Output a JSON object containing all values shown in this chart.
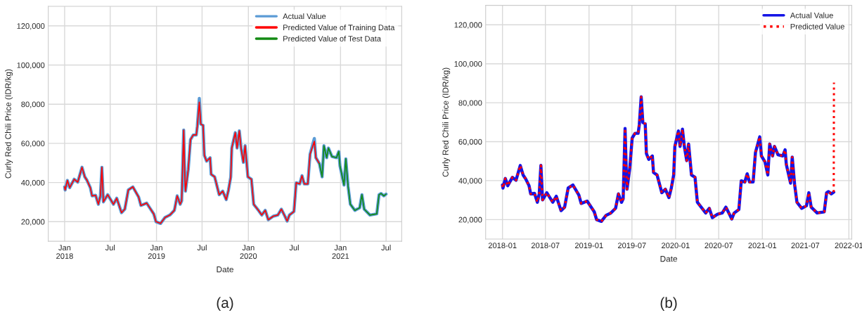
{
  "chart_data": [
    {
      "type": "line",
      "xlabel": "Date",
      "ylabel": "Curly Red Chili Price (IDR/kg)",
      "xlim": [
        "2017-10-28",
        "2021-09-01"
      ],
      "xticks": [
        {
          "value": "2018-01-01",
          "label": "Jan\n2018"
        },
        {
          "value": "2018-07-01",
          "label": "Jul"
        },
        {
          "value": "2019-01-01",
          "label": "Jan\n2019"
        },
        {
          "value": "2019-07-01",
          "label": "Jul"
        },
        {
          "value": "2020-01-01",
          "label": "Jan\n2020"
        },
        {
          "value": "2020-07-01",
          "label": "Jul"
        },
        {
          "value": "2021-01-01",
          "label": "Jan\n2021"
        },
        {
          "value": "2021-07-01",
          "label": "Jul"
        }
      ],
      "ylim": [
        10000,
        130000
      ],
      "yticks": [
        {
          "value": 20000,
          "label": "20,000"
        },
        {
          "value": 40000,
          "label": "40,000"
        },
        {
          "value": 60000,
          "label": "60,000"
        },
        {
          "value": 80000,
          "label": "80,000"
        },
        {
          "value": 100000,
          "label": "100,000"
        },
        {
          "value": 120000,
          "label": "120,000"
        }
      ],
      "grid": true,
      "legend": "top right",
      "marker": "none",
      "annotations": [
        "(a)"
      ],
      "series": [
        {
          "name": "Actual Value",
          "color": "#5b9bd5",
          "line_style": "solid",
          "x": [
            "2018-01-01",
            "2018-01-03",
            "2018-01-12",
            "2018-01-21",
            "2018-02-08",
            "2018-02-22",
            "2018-03-11",
            "2018-03-22",
            "2018-03-31",
            "2018-04-13",
            "2018-04-20",
            "2018-05-04",
            "2018-05-15",
            "2018-05-23",
            "2018-05-29",
            "2018-06-04",
            "2018-06-21",
            "2018-07-14",
            "2018-07-27",
            "2018-08-15",
            "2018-08-28",
            "2018-09-11",
            "2018-09-29",
            "2018-10-22",
            "2018-10-31",
            "2018-11-23",
            "2018-12-02",
            "2018-12-21",
            "2018-12-30",
            "2019-01-17",
            "2019-02-04",
            "2019-02-23",
            "2019-03-13",
            "2019-03-24",
            "2019-04-05",
            "2019-04-11",
            "2019-04-19",
            "2019-04-23",
            "2019-04-26",
            "2019-05-07",
            "2019-05-16",
            "2019-05-27",
            "2019-06-08",
            "2019-06-12",
            "2019-06-20",
            "2019-06-26",
            "2019-07-05",
            "2019-07-10",
            "2019-07-19",
            "2019-08-02",
            "2019-08-06",
            "2019-08-20",
            "2019-09-07",
            "2019-09-21",
            "2019-10-05",
            "2019-10-14",
            "2019-10-23",
            "2019-10-27",
            "2019-11-10",
            "2019-11-17",
            "2019-11-26",
            "2019-12-03",
            "2019-12-12",
            "2019-12-19",
            "2019-12-30",
            "2020-01-13",
            "2020-01-22",
            "2020-02-10",
            "2020-02-23",
            "2020-03-08",
            "2020-03-20",
            "2020-04-09",
            "2020-04-27",
            "2020-05-11",
            "2020-05-25",
            "2020-06-03",
            "2020-06-12",
            "2020-06-30",
            "2020-07-09",
            "2020-07-23",
            "2020-08-01",
            "2020-08-10",
            "2020-08-24",
            "2020-09-02",
            "2020-09-19",
            "2020-09-25",
            "2020-10-09",
            "2020-10-20",
            "2020-10-27",
            "2020-11-07",
            "2020-11-14",
            "2020-11-28",
            "2020-12-16",
            "2020-12-25",
            "2020-12-30",
            "2021-01-15",
            "2021-01-22",
            "2021-01-31",
            "2021-02-09",
            "2021-02-27",
            "2021-03-18",
            "2021-03-27",
            "2021-04-05",
            "2021-04-28",
            "2021-05-25",
            "2021-06-03",
            "2021-06-11",
            "2021-06-22",
            "2021-07-01"
          ],
          "values": [
            37800,
            36200,
            41100,
            37400,
            41700,
            40200,
            47800,
            42900,
            41100,
            37400,
            33200,
            33500,
            28900,
            33200,
            47800,
            30100,
            33800,
            28900,
            32000,
            24600,
            26400,
            36200,
            37800,
            32600,
            28300,
            29500,
            27700,
            24000,
            20000,
            19100,
            22200,
            23400,
            25800,
            33200,
            28900,
            30700,
            66800,
            45400,
            35600,
            46600,
            61900,
            64300,
            64300,
            68600,
            83000,
            69800,
            69200,
            53900,
            50900,
            52700,
            44200,
            42900,
            33800,
            35600,
            31300,
            36200,
            42900,
            57600,
            65500,
            57600,
            66400,
            57600,
            50300,
            58800,
            42900,
            41700,
            28900,
            25800,
            23400,
            25800,
            21000,
            22800,
            23400,
            26400,
            22800,
            20300,
            23400,
            25200,
            39900,
            39300,
            43500,
            39300,
            39300,
            54500,
            62500,
            52700,
            49700,
            42900,
            58800,
            52700,
            57600,
            53300,
            52700,
            55800,
            48400,
            38700,
            52100,
            38100,
            28900,
            25800,
            27100,
            33800,
            26400,
            23400,
            24000,
            33800,
            34400,
            33200,
            34100
          ]
        },
        {
          "name": "Predicted Value of Training Data",
          "color": "#ff0000",
          "line_style": "solid",
          "x": [
            "2018-01-01",
            "2018-01-03",
            "2018-01-12",
            "2018-01-21",
            "2018-02-08",
            "2018-02-22",
            "2018-03-11",
            "2018-03-22",
            "2018-03-31",
            "2018-04-13",
            "2018-04-20",
            "2018-05-04",
            "2018-05-15",
            "2018-05-23",
            "2018-05-29",
            "2018-06-04",
            "2018-06-21",
            "2018-07-14",
            "2018-07-27",
            "2018-08-15",
            "2018-08-28",
            "2018-09-11",
            "2018-09-29",
            "2018-10-22",
            "2018-10-31",
            "2018-11-23",
            "2018-12-02",
            "2018-12-21",
            "2018-12-30",
            "2019-01-17",
            "2019-02-04",
            "2019-02-23",
            "2019-03-13",
            "2019-03-24",
            "2019-04-05",
            "2019-04-11",
            "2019-04-19",
            "2019-04-23",
            "2019-04-26",
            "2019-05-07",
            "2019-05-16",
            "2019-05-27",
            "2019-06-08",
            "2019-06-12",
            "2019-06-20",
            "2019-06-26",
            "2019-07-05",
            "2019-07-10",
            "2019-07-19",
            "2019-08-02",
            "2019-08-06",
            "2019-08-20",
            "2019-09-07",
            "2019-09-21",
            "2019-10-05",
            "2019-10-14",
            "2019-10-23",
            "2019-10-27",
            "2019-11-10",
            "2019-11-17",
            "2019-11-26",
            "2019-12-03",
            "2019-12-12",
            "2019-12-19",
            "2019-12-30",
            "2020-01-13",
            "2020-01-22",
            "2020-02-10",
            "2020-02-23",
            "2020-03-08",
            "2020-03-20",
            "2020-04-09",
            "2020-04-27",
            "2020-05-11",
            "2020-05-25",
            "2020-06-03",
            "2020-06-12",
            "2020-06-30",
            "2020-07-09",
            "2020-07-23",
            "2020-08-01",
            "2020-08-10",
            "2020-08-24",
            "2020-09-02",
            "2020-09-19",
            "2020-09-25",
            "2020-10-09"
          ],
          "values": [
            37800,
            36200,
            41100,
            37400,
            41700,
            40200,
            47800,
            42900,
            41100,
            37400,
            33200,
            33500,
            28900,
            33200,
            47800,
            30100,
            33800,
            28900,
            32000,
            24600,
            26400,
            36200,
            37800,
            32600,
            28300,
            29500,
            27700,
            24000,
            20000,
            19100,
            22200,
            23400,
            25800,
            33200,
            28900,
            30700,
            66800,
            45400,
            35600,
            46600,
            61900,
            64300,
            64300,
            68600,
            81000,
            69800,
            69200,
            53900,
            50900,
            52700,
            44200,
            42900,
            33800,
            35600,
            31300,
            36200,
            42900,
            57600,
            65500,
            57600,
            66400,
            57600,
            50300,
            58800,
            42900,
            41700,
            28900,
            25800,
            23400,
            25800,
            21000,
            22800,
            23400,
            26400,
            22800,
            20300,
            23400,
            25200,
            39900,
            39300,
            43500,
            39300,
            39300,
            54500,
            61000,
            52700,
            49700
          ]
        },
        {
          "name": "Predicted Value of Test Data",
          "color": "#138a13",
          "line_style": "solid",
          "x": [
            "2020-10-09",
            "2020-10-20",
            "2020-10-27",
            "2020-11-07",
            "2020-11-14",
            "2020-11-28",
            "2020-12-16",
            "2020-12-25",
            "2020-12-30",
            "2021-01-15",
            "2021-01-22",
            "2021-01-31",
            "2021-02-09",
            "2021-02-27",
            "2021-03-18",
            "2021-03-27",
            "2021-04-05",
            "2021-04-28",
            "2021-05-25",
            "2021-06-03",
            "2021-06-11",
            "2021-06-22",
            "2021-07-01"
          ],
          "values": [
            49700,
            42900,
            58800,
            52700,
            57600,
            53300,
            52700,
            55800,
            48400,
            38700,
            52100,
            38100,
            28900,
            25800,
            27100,
            33800,
            26400,
            23400,
            24000,
            33800,
            34400,
            33200,
            34100
          ]
        }
      ]
    },
    {
      "type": "line",
      "xlabel": "Date",
      "ylabel": "Curly Red Chili Price (IDR/kg)",
      "xlim": [
        "2017-10-22",
        "2022-01-13"
      ],
      "xticks": [
        {
          "value": "2018-01-01",
          "label": "2018-01"
        },
        {
          "value": "2018-07-01",
          "label": "2018-07"
        },
        {
          "value": "2019-01-01",
          "label": "2019-01"
        },
        {
          "value": "2019-07-01",
          "label": "2019-07"
        },
        {
          "value": "2020-01-01",
          "label": "2020-01"
        },
        {
          "value": "2020-07-01",
          "label": "2020-07"
        },
        {
          "value": "2021-01-01",
          "label": "2021-01"
        },
        {
          "value": "2021-07-01",
          "label": "2021-07"
        },
        {
          "value": "2022-01-01",
          "label": "2022-01"
        }
      ],
      "ylim": [
        10000,
        130000
      ],
      "yticks": [
        {
          "value": 20000,
          "label": "20,000"
        },
        {
          "value": 40000,
          "label": "40,000"
        },
        {
          "value": 60000,
          "label": "60,000"
        },
        {
          "value": 80000,
          "label": "80,000"
        },
        {
          "value": 100000,
          "label": "100,000"
        },
        {
          "value": 120000,
          "label": "120,000"
        }
      ],
      "grid": true,
      "legend": "top right",
      "marker": "none",
      "annotations": [
        "(b)"
      ],
      "series": [
        {
          "name": "Actual Value",
          "color": "#1414e6",
          "line_style": "solid",
          "x": [
            "2018-01-01",
            "2018-01-03",
            "2018-01-13",
            "2018-01-23",
            "2018-02-12",
            "2018-02-27",
            "2018-03-17",
            "2018-03-29",
            "2018-04-08",
            "2018-04-23",
            "2018-04-30",
            "2018-05-16",
            "2018-05-28",
            "2018-06-05",
            "2018-06-12",
            "2018-06-19",
            "2018-07-07",
            "2018-08-01",
            "2018-08-16",
            "2018-09-05",
            "2018-09-20",
            "2018-10-05",
            "2018-10-25",
            "2018-11-19",
            "2018-11-29",
            "2018-12-24",
            "2019-01-03",
            "2019-01-23",
            "2019-02-02",
            "2019-02-22",
            "2019-03-14",
            "2019-04-03",
            "2019-04-23",
            "2019-05-05",
            "2019-05-18",
            "2019-05-25",
            "2019-06-02",
            "2019-06-07",
            "2019-06-10",
            "2019-06-22",
            "2019-07-02",
            "2019-07-14",
            "2019-07-27",
            "2019-08-01",
            "2019-08-09",
            "2019-08-16",
            "2019-08-26",
            "2019-08-31",
            "2019-09-10",
            "2019-09-25",
            "2019-09-30",
            "2019-10-15",
            "2019-11-04",
            "2019-11-19",
            "2019-12-04",
            "2019-12-14",
            "2019-12-24",
            "2019-12-29",
            "2020-01-13",
            "2020-01-20",
            "2020-01-30",
            "2020-02-07",
            "2020-02-17",
            "2020-02-25",
            "2020-03-08",
            "2020-03-23",
            "2020-04-02",
            "2020-04-22",
            "2020-05-07",
            "2020-05-22",
            "2020-06-04",
            "2020-06-26",
            "2020-07-16",
            "2020-07-31",
            "2020-08-15",
            "2020-08-25",
            "2020-09-04",
            "2020-09-24",
            "2020-10-04",
            "2020-10-19",
            "2020-10-29",
            "2020-11-08",
            "2020-11-23",
            "2020-12-03",
            "2020-12-21",
            "2020-12-28",
            "2021-01-12",
            "2021-01-24",
            "2021-02-01",
            "2021-02-13",
            "2021-02-21",
            "2021-03-08",
            "2021-03-28",
            "2021-04-07",
            "2021-04-12",
            "2021-04-30",
            "2021-05-07",
            "2021-05-17",
            "2021-05-27",
            "2021-06-16",
            "2021-07-06",
            "2021-07-16",
            "2021-07-26",
            "2021-08-20",
            "2021-09-19",
            "2021-09-29",
            "2021-10-07",
            "2021-10-19",
            "2021-10-29"
          ],
          "values": [
            37800,
            36200,
            41100,
            37400,
            41700,
            40200,
            47800,
            42900,
            41100,
            37400,
            33200,
            33500,
            28900,
            33200,
            47800,
            30100,
            33800,
            28900,
            32000,
            24600,
            26400,
            36200,
            37800,
            32600,
            28300,
            29500,
            27700,
            24000,
            20000,
            19100,
            22200,
            23400,
            25800,
            33200,
            28900,
            30700,
            66800,
            45400,
            35600,
            46600,
            61900,
            64300,
            64300,
            68600,
            83000,
            69800,
            69200,
            53900,
            50900,
            52700,
            44200,
            42900,
            33800,
            35600,
            31300,
            36200,
            42900,
            57600,
            65500,
            57600,
            66400,
            57600,
            50300,
            58800,
            42900,
            41700,
            28900,
            25800,
            23400,
            25800,
            21000,
            22800,
            23400,
            26400,
            22800,
            20300,
            23400,
            25200,
            39900,
            39300,
            43500,
            39300,
            39300,
            54500,
            62500,
            52700,
            49700,
            42900,
            58800,
            52700,
            57600,
            53300,
            52700,
            55800,
            48400,
            38700,
            52100,
            38100,
            28900,
            25800,
            27100,
            33800,
            26400,
            23400,
            24000,
            33800,
            34400,
            33200,
            34100
          ]
        },
        {
          "name": "Predicted Value",
          "color": "#ff0000",
          "line_style": "dotted",
          "x": [
            "2018-01-01",
            "2018-01-03",
            "2018-01-13",
            "2018-01-23",
            "2018-02-12",
            "2018-02-27",
            "2018-03-17",
            "2018-03-29",
            "2018-04-08",
            "2018-04-23",
            "2018-04-30",
            "2018-05-16",
            "2018-05-28",
            "2018-06-05",
            "2018-06-12",
            "2018-06-19",
            "2018-07-07",
            "2018-08-01",
            "2018-08-16",
            "2018-09-05",
            "2018-09-20",
            "2018-10-05",
            "2018-10-25",
            "2018-11-19",
            "2018-11-29",
            "2018-12-24",
            "2019-01-03",
            "2019-01-23",
            "2019-02-02",
            "2019-02-22",
            "2019-03-14",
            "2019-04-03",
            "2019-04-23",
            "2019-05-05",
            "2019-05-18",
            "2019-05-25",
            "2019-06-02",
            "2019-06-07",
            "2019-06-10",
            "2019-06-22",
            "2019-07-02",
            "2019-07-14",
            "2019-07-27",
            "2019-08-01",
            "2019-08-09",
            "2019-08-16",
            "2019-08-26",
            "2019-08-31",
            "2019-09-10",
            "2019-09-25",
            "2019-09-30",
            "2019-10-15",
            "2019-11-04",
            "2019-11-19",
            "2019-12-04",
            "2019-12-14",
            "2019-12-24",
            "2019-12-29",
            "2020-01-13",
            "2020-01-20",
            "2020-01-30",
            "2020-02-07",
            "2020-02-17",
            "2020-02-25",
            "2020-03-08",
            "2020-03-23",
            "2020-04-02",
            "2020-04-22",
            "2020-05-07",
            "2020-05-22",
            "2020-06-04",
            "2020-06-26",
            "2020-07-16",
            "2020-07-31",
            "2020-08-15",
            "2020-08-25",
            "2020-09-04",
            "2020-09-24",
            "2020-10-04",
            "2020-10-19",
            "2020-10-29",
            "2020-11-08",
            "2020-11-23",
            "2020-12-03",
            "2020-12-21",
            "2020-12-28",
            "2021-01-12",
            "2021-01-24",
            "2021-02-01",
            "2021-02-13",
            "2021-02-21",
            "2021-03-08",
            "2021-03-28",
            "2021-04-07",
            "2021-04-12",
            "2021-04-30",
            "2021-05-07",
            "2021-05-17",
            "2021-05-27",
            "2021-06-16",
            "2021-07-06",
            "2021-07-16",
            "2021-07-26",
            "2021-08-20",
            "2021-09-19",
            "2021-09-29",
            "2021-10-07",
            "2021-10-19",
            "2021-10-29",
            "2021-10-30"
          ],
          "values": [
            37800,
            36200,
            41100,
            37400,
            41700,
            40200,
            47800,
            42900,
            41100,
            37400,
            33200,
            33500,
            28900,
            33200,
            47800,
            30100,
            33800,
            28900,
            32000,
            24600,
            26400,
            36200,
            37800,
            32600,
            28300,
            29500,
            27700,
            24000,
            20000,
            19100,
            22200,
            23400,
            25800,
            33200,
            28900,
            30700,
            66800,
            45400,
            35600,
            46600,
            61900,
            64300,
            64300,
            68600,
            83000,
            69800,
            69200,
            53900,
            50900,
            52700,
            44200,
            42900,
            33800,
            35600,
            31300,
            36200,
            42900,
            57600,
            65500,
            57600,
            66400,
            57600,
            50300,
            58800,
            42900,
            41700,
            28900,
            25800,
            23400,
            25800,
            21000,
            22800,
            23400,
            26400,
            22800,
            20300,
            23400,
            25200,
            39900,
            39300,
            43500,
            39300,
            39300,
            54500,
            62500,
            52700,
            49700,
            42900,
            58800,
            52700,
            57600,
            53300,
            52700,
            55800,
            48400,
            38700,
            52100,
            38100,
            28900,
            25800,
            27100,
            33800,
            26400,
            23400,
            24000,
            33800,
            34400,
            33200,
            34100,
            90300
          ]
        }
      ]
    }
  ]
}
